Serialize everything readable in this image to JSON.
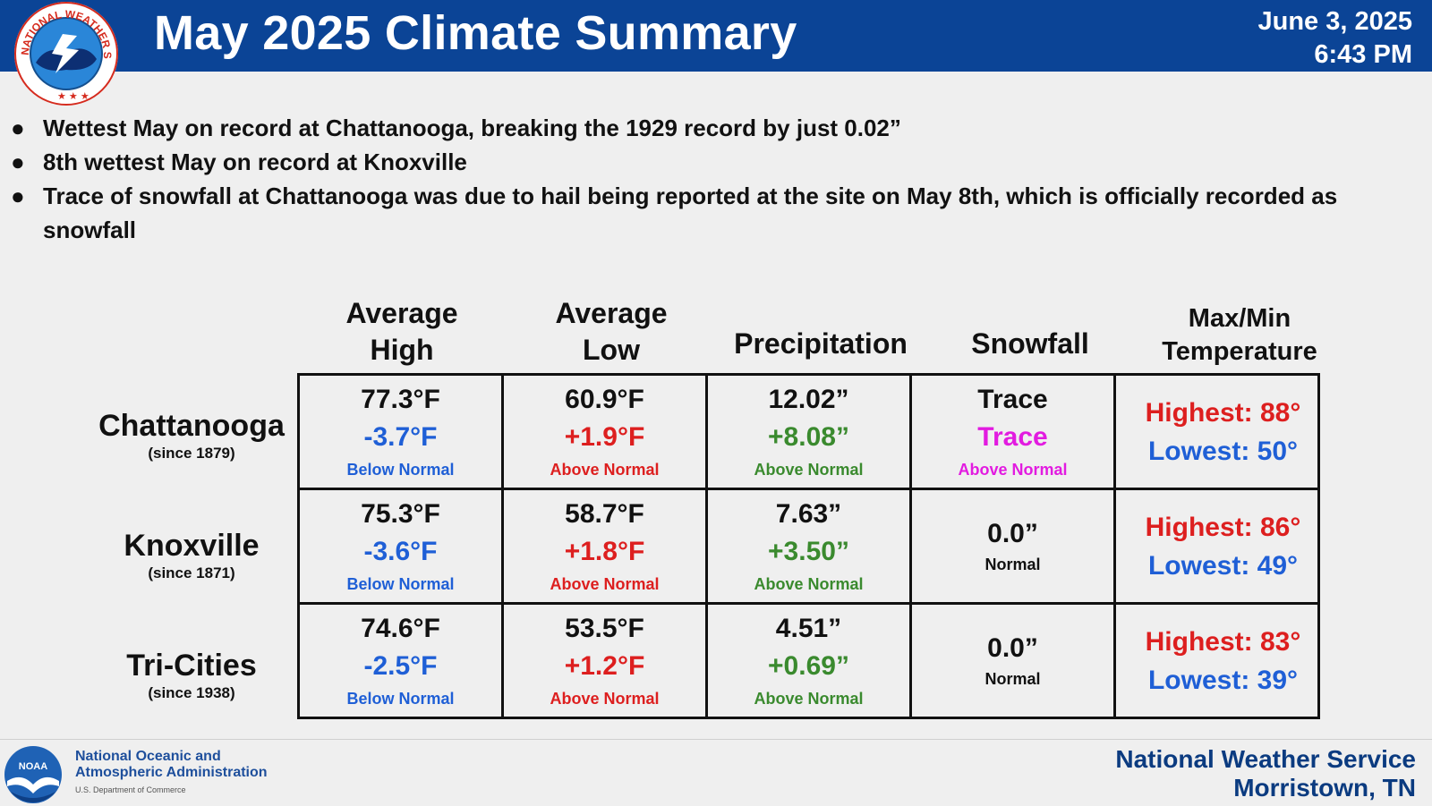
{
  "header": {
    "title": "May 2025 Climate Summary",
    "date": "June 3, 2025",
    "time": "6:43 PM",
    "logo_text": "NATIONAL WEATHER SERVICE"
  },
  "bullets": [
    "Wettest May on record at Chattanooga, breaking the 1929 record by just 0.02”",
    "8th wettest May on record at Knoxville",
    "Trace of snowfall at Chattanooga was due to hail being reported at the site on May 8th, which is officially recorded as snowfall"
  ],
  "columns": {
    "avg_high": [
      "Average",
      "High"
    ],
    "avg_low": [
      "Average",
      "Low"
    ],
    "precip": "Precipitation",
    "snow": "Snowfall",
    "maxmin": [
      "Max/Min",
      "Temperature"
    ]
  },
  "colors": {
    "below": "#1f5fd6",
    "above_temp": "#dd1f1f",
    "above_precip": "#3a8a2e",
    "above_snow": "#e21be0",
    "highest": "#dd1f1f",
    "lowest": "#1f5fd6",
    "header_bg": "#0b4496"
  },
  "stations": [
    {
      "city": "Chattanooga",
      "since": "(since 1879)",
      "avg_high": {
        "value": "77.3°F",
        "departure": "-3.7°F",
        "status": "Below Normal"
      },
      "avg_low": {
        "value": "60.9°F",
        "departure": "+1.9°F",
        "status": "Above Normal"
      },
      "precip": {
        "value": "12.02”",
        "departure": "+8.08”",
        "status": "Above Normal"
      },
      "snow": {
        "value": "Trace",
        "departure": "Trace",
        "status": "Above Normal"
      },
      "highest": "Highest: 88°",
      "lowest": "Lowest: 50°"
    },
    {
      "city": "Knoxville",
      "since": "(since 1871)",
      "avg_high": {
        "value": "75.3°F",
        "departure": "-3.6°F",
        "status": "Below Normal"
      },
      "avg_low": {
        "value": "58.7°F",
        "departure": "+1.8°F",
        "status": "Above Normal"
      },
      "precip": {
        "value": "7.63”",
        "departure": "+3.50”",
        "status": "Above Normal"
      },
      "snow": {
        "value": "0.0”",
        "status": "Normal"
      },
      "highest": "Highest: 86°",
      "lowest": "Lowest: 49°"
    },
    {
      "city": "Tri-Cities",
      "since": "(since 1938)",
      "avg_high": {
        "value": "74.6°F",
        "departure": "-2.5°F",
        "status": "Below Normal"
      },
      "avg_low": {
        "value": "53.5°F",
        "departure": "+1.2°F",
        "status": "Above Normal"
      },
      "precip": {
        "value": "4.51”",
        "departure": "+0.69”",
        "status": "Above Normal"
      },
      "snow": {
        "value": "0.0”",
        "status": "Normal"
      },
      "highest": "Highest: 83°",
      "lowest": "Lowest: 39°"
    }
  ],
  "footer": {
    "noaa_line1": "National Oceanic and",
    "noaa_line2": "Atmospheric Administration",
    "noaa_line3": "U.S. Department of Commerce",
    "noaa_logo_text": "NOAA",
    "office_line1": "National Weather Service",
    "office_line2": "Morristown, TN"
  }
}
